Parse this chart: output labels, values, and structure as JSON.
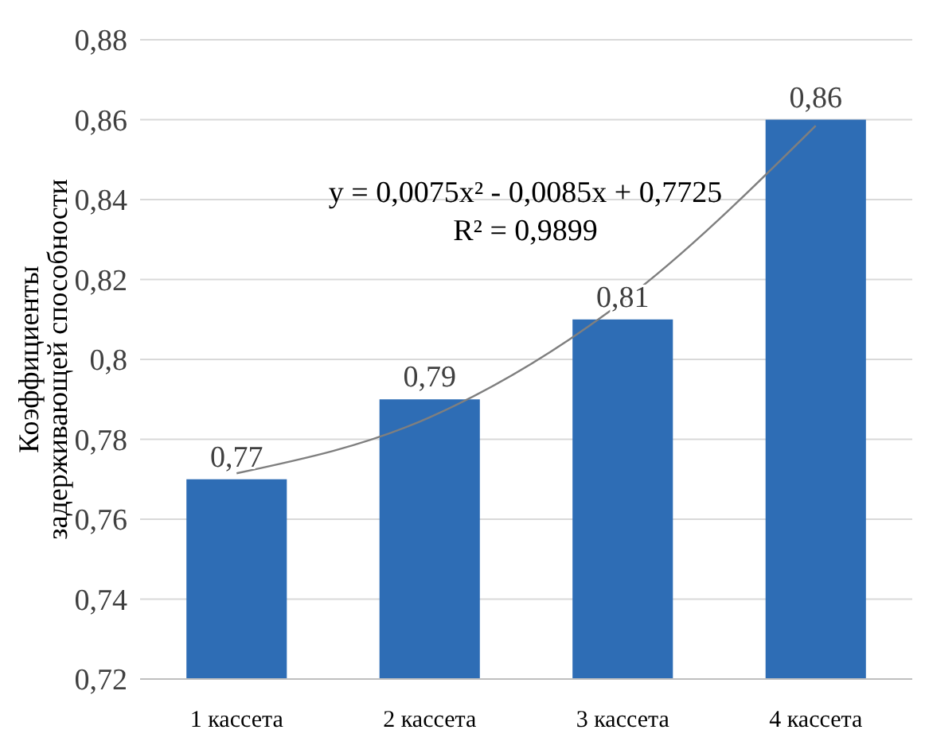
{
  "chart_data": {
    "type": "bar",
    "ylabel": "Коэффициенты\nзадерживающей способности",
    "categories": [
      "1 кассета",
      "2 кассета",
      "3 кассета",
      "4 кассета"
    ],
    "series": [
      {
        "color": "#2e6db5",
        "values": [
          0.77,
          0.79,
          0.81,
          0.86
        ],
        "value_labels": [
          "0,77",
          "0,79",
          "0,81",
          "0,86"
        ]
      },
      {
        "type": "line",
        "color": "#7f7f7f",
        "x": [
          "1 кассета",
          "2 кассета",
          "3 кассета",
          "4 кассета"
        ],
        "values": [
          0.7715,
          0.7855,
          0.8145,
          0.8585
        ]
      }
    ],
    "ylim": [
      0.72,
      0.88
    ],
    "yticks": [
      {
        "value": 0.72,
        "label": "0,72"
      },
      {
        "value": 0.74,
        "label": "0,74"
      },
      {
        "value": 0.76,
        "label": "0,76"
      },
      {
        "value": 0.78,
        "label": "0,78"
      },
      {
        "value": 0.8,
        "label": "0,8"
      },
      {
        "value": 0.82,
        "label": "0,82"
      },
      {
        "value": 0.84,
        "label": "0,84"
      },
      {
        "value": 0.86,
        "label": "0,86"
      },
      {
        "value": 0.88,
        "label": "0,88"
      }
    ],
    "grid": "y",
    "annotations": [
      "y = 0,0075x² - 0,0085x + 0,7725",
      "R² = 0,9899"
    ]
  }
}
